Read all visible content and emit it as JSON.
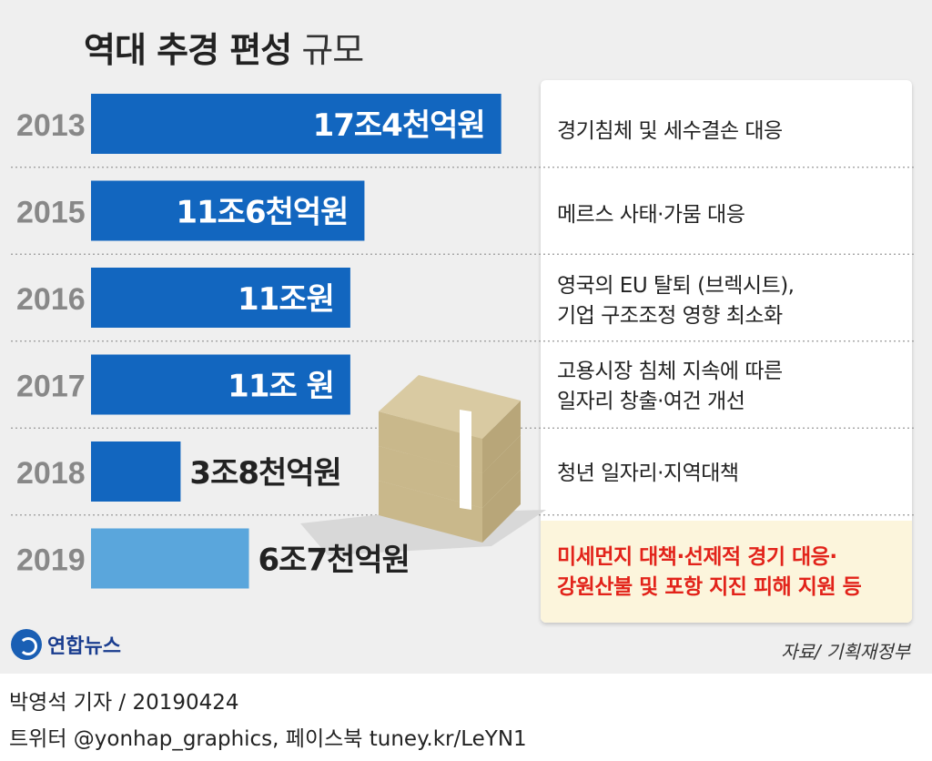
{
  "title": {
    "bold": "역대 추경 편성",
    "light": "규모"
  },
  "chart_data": {
    "type": "bar",
    "orientation": "horizontal",
    "title": "역대 추경 편성 규모",
    "unit": "원",
    "categories": [
      "2013",
      "2015",
      "2016",
      "2017",
      "2018",
      "2019"
    ],
    "values": [
      17.4,
      11.6,
      11.0,
      11.0,
      3.8,
      6.7
    ],
    "value_labels": [
      "17조4천억원",
      "11조6천억원",
      "11조원",
      "11조 원",
      "3조8천억원",
      "6조7천억원"
    ],
    "colors": [
      "#1266bf",
      "#1266bf",
      "#1266bf",
      "#1266bf",
      "#1266bf",
      "#5aa6dc"
    ]
  },
  "notes": [
    [
      "경기침체 및 세수결손 대응"
    ],
    [
      "메르스 사태·가뭄 대응"
    ],
    [
      "영국의 EU 탈퇴 (브렉시트),",
      "기업 구조조정 영향 최소화"
    ],
    [
      "고용시장 침체 지속에 따른",
      "일자리 창출·여건 개선"
    ],
    [
      "청년 일자리·지역대책"
    ],
    [
      "미세먼지 대책·선제적 경기 대응·",
      "강원산불  및 포항 지진 피해 지원 등"
    ]
  ],
  "logo_text": "연합뉴스",
  "source": "자료/ 기획재정부",
  "credit": {
    "line1": "박영석  기자 /  20190424",
    "line2": "트위터 @yonhap_graphics, 페이스북 tuney.kr/LeYN1"
  },
  "colors": {
    "bar": "#1266bf",
    "bar_highlight": "#5aa6dc",
    "note_red": "#e2231a"
  }
}
